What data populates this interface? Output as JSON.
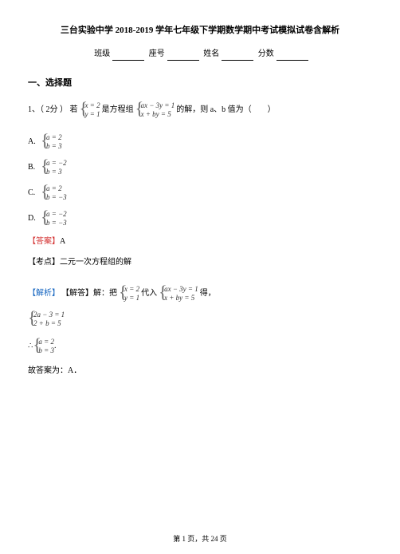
{
  "title": "三台实验中学 2018-2019 学年七年级下学期数学期中考试模拟试卷含解析",
  "info": {
    "class_label": "班级",
    "seat_label": "座号",
    "name_label": "姓名",
    "score_label": "分数"
  },
  "section1": "一、选择题",
  "q1": {
    "num": "1、（ 2分 ） 若",
    "given1_l1": "x = 2",
    "given1_l2": "y = 1",
    "mid1": "是方程组",
    "given2_l1": "ax − 3y = 1",
    "given2_l2": "x + by = 5",
    "mid2": "的解，则 a、b 值为（　　）"
  },
  "options": {
    "A": {
      "letter": "A.",
      "l1": "a = 2",
      "l2": "b = 3"
    },
    "B": {
      "letter": "B.",
      "l1": "a = −2",
      "l2": "b = 3"
    },
    "C": {
      "letter": "C.",
      "l1": "a = 2",
      "l2": "b = −3"
    },
    "D": {
      "letter": "D.",
      "l1": "a = −2",
      "l2": "b = −3"
    }
  },
  "answer": {
    "label": "【答案】",
    "value": "A"
  },
  "examine": {
    "label": "【考点】",
    "text": "二元一次方程组的解"
  },
  "explain": {
    "label": "【解析】",
    "pre": "【解答】解：把",
    "g1_l1": "x = 2",
    "g1_l2": "y = 1",
    "mid": "代入",
    "g2_l1": "ax − 3y = 1",
    "g2_l2": "x + by = 5",
    "end": "得，"
  },
  "step2": {
    "l1": "2a − 3 = 1",
    "l2": "2 + b = 5"
  },
  "result": {
    "pre": "∴",
    "l1": "a = 2",
    "l2": "b = 3",
    "suf": "."
  },
  "final": "故答案为：A．",
  "footer": {
    "pre": "第",
    "cur": "1",
    "mid": "页，共",
    "total": "24",
    "suf": "页"
  },
  "colors": {
    "red": "#d32f2f",
    "blue": "#1565c0",
    "text": "#000000",
    "bg": "#ffffff"
  }
}
